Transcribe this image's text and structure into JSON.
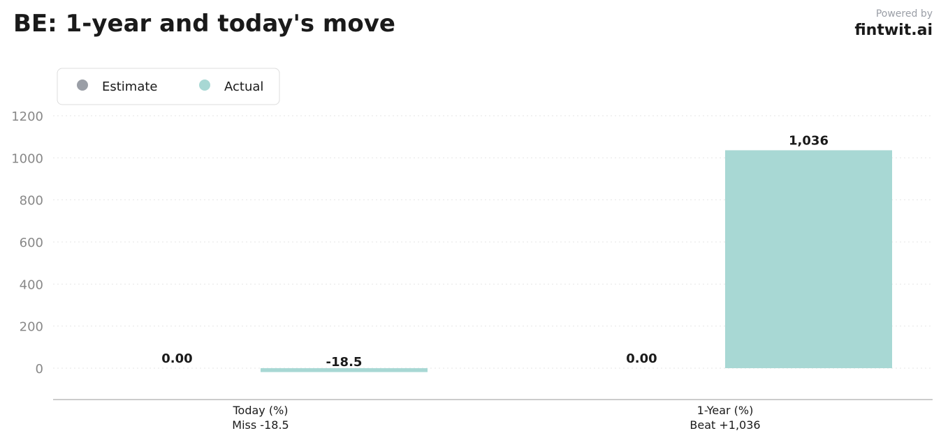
{
  "header": {
    "title": "BE: 1-year and today's move",
    "powered_by": "Powered by",
    "brand": "fintwit.ai"
  },
  "chart_data": {
    "type": "bar",
    "categories": [
      "Today (%)",
      "1-Year (%)"
    ],
    "category_sublabels": [
      "Miss -18.5",
      "Beat +1,036"
    ],
    "series": [
      {
        "name": "Estimate",
        "color": "#9a9ea6",
        "values": [
          0,
          0
        ],
        "labels": [
          "0.00",
          "0.00"
        ]
      },
      {
        "name": "Actual",
        "color": "#a8d8d4",
        "values": [
          -18.5,
          1036
        ],
        "labels": [
          "-18.5",
          "1,036"
        ]
      }
    ],
    "yticks": [
      0,
      200,
      400,
      600,
      800,
      1000,
      1200
    ],
    "ytick_labels": [
      "0",
      "200",
      "400",
      "600",
      "800",
      "1000",
      "1200"
    ],
    "ylim": [
      -150,
      1200
    ],
    "grid": true,
    "legend_position": "top-left"
  }
}
